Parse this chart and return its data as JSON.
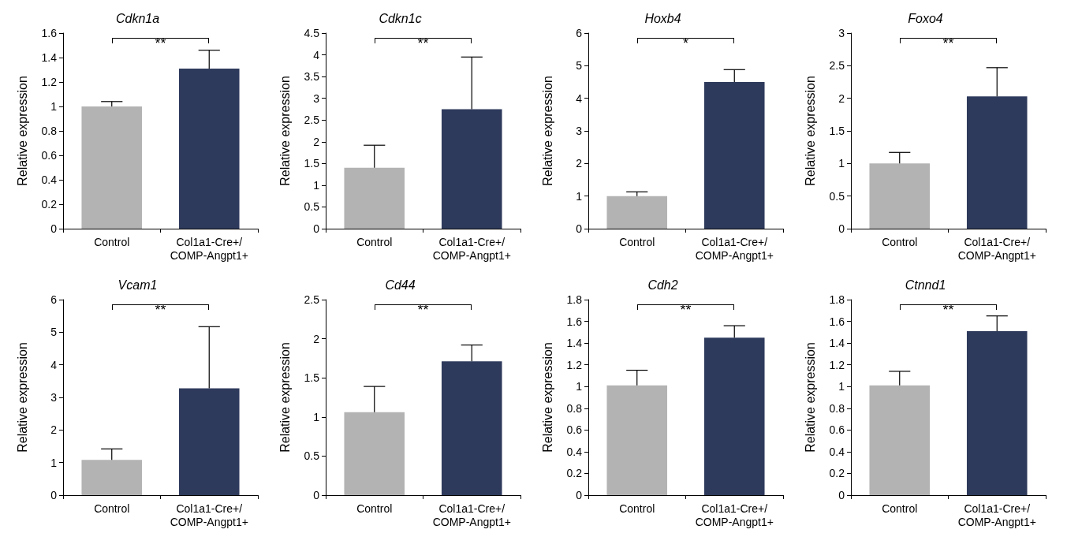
{
  "chart_data": [
    {
      "type": "bar",
      "title": "Cdkn1a",
      "ylabel": "Relative expression",
      "categories": [
        "Control",
        "Col1a1-Cre+/\nCOMP-Angpt1+"
      ],
      "values": [
        1.0,
        1.31
      ],
      "errors": [
        [
          1.0,
          1.04
        ],
        [
          1.31,
          1.46
        ]
      ],
      "colors": [
        "#b3b3b3",
        "#2e3a5c"
      ],
      "ylim": [
        0,
        1.6
      ],
      "yticks": [
        0,
        0.2,
        0.4,
        0.6,
        0.8,
        1,
        1.2,
        1.4,
        1.6
      ],
      "annotations": [
        "**"
      ],
      "grid": false
    },
    {
      "type": "bar",
      "title": "Cdkn1c",
      "ylabel": "Relative expression",
      "categories": [
        "Control",
        "Col1a1-Cre+/\nCOMP-Angpt1+"
      ],
      "values": [
        1.4,
        2.75
      ],
      "errors": [
        [
          1.4,
          1.92
        ],
        [
          2.75,
          3.95
        ]
      ],
      "colors": [
        "#b3b3b3",
        "#2e3a5c"
      ],
      "ylim": [
        0,
        4.5
      ],
      "yticks": [
        0,
        0.5,
        1,
        1.5,
        2,
        2.5,
        3,
        3.5,
        4,
        4.5
      ],
      "annotations": [
        "**"
      ],
      "grid": false
    },
    {
      "type": "bar",
      "title": "Hoxb4",
      "ylabel": "Relative expression",
      "categories": [
        "Control",
        "Col1a1-Cre+/\nCOMP-Angpt1+"
      ],
      "values": [
        1.0,
        4.5
      ],
      "errors": [
        [
          1.0,
          1.13
        ],
        [
          4.5,
          4.88
        ]
      ],
      "colors": [
        "#b3b3b3",
        "#2e3a5c"
      ],
      "ylim": [
        0,
        6
      ],
      "yticks": [
        0,
        1,
        2,
        3,
        4,
        5,
        6
      ],
      "annotations": [
        "*"
      ],
      "grid": false
    },
    {
      "type": "bar",
      "title": "Foxo4",
      "ylabel": "Relative expression",
      "categories": [
        "Control",
        "Col1a1-Cre+/\nCOMP-Angpt1+"
      ],
      "values": [
        1.0,
        2.03
      ],
      "errors": [
        [
          1.0,
          1.17
        ],
        [
          2.03,
          2.47
        ]
      ],
      "colors": [
        "#b3b3b3",
        "#2e3a5c"
      ],
      "ylim": [
        0,
        3
      ],
      "yticks": [
        0,
        0.5,
        1,
        1.5,
        2,
        2.5,
        3
      ],
      "annotations": [
        "**"
      ],
      "grid": false
    },
    {
      "type": "bar",
      "title": "Vcam1",
      "ylabel": "Relative expression",
      "categories": [
        "Control",
        "Col1a1-Cre+/\nCOMP-Angpt1+"
      ],
      "values": [
        1.08,
        3.28
      ],
      "errors": [
        [
          1.08,
          1.42
        ],
        [
          3.28,
          5.17
        ]
      ],
      "colors": [
        "#b3b3b3",
        "#2e3a5c"
      ],
      "ylim": [
        0,
        6
      ],
      "yticks": [
        0,
        1,
        2,
        3,
        4,
        5,
        6
      ],
      "annotations": [
        "**"
      ],
      "grid": false
    },
    {
      "type": "bar",
      "title": "Cd44",
      "ylabel": "Relative expression",
      "categories": [
        "Control",
        "Col1a1-Cre+/\nCOMP-Angpt1+"
      ],
      "values": [
        1.06,
        1.71
      ],
      "errors": [
        [
          1.06,
          1.39
        ],
        [
          1.71,
          1.92
        ]
      ],
      "colors": [
        "#b3b3b3",
        "#2e3a5c"
      ],
      "ylim": [
        0,
        2.5
      ],
      "yticks": [
        0,
        0.5,
        1,
        1.5,
        2,
        2.5
      ],
      "annotations": [
        "**"
      ],
      "grid": false
    },
    {
      "type": "bar",
      "title": "Cdh2",
      "ylabel": "Relative expression",
      "categories": [
        "Control",
        "Col1a1-Cre+/\nCOMP-Angpt1+"
      ],
      "values": [
        1.01,
        1.45
      ],
      "errors": [
        [
          1.01,
          1.15
        ],
        [
          1.45,
          1.56
        ]
      ],
      "colors": [
        "#b3b3b3",
        "#2e3a5c"
      ],
      "ylim": [
        0,
        1.8
      ],
      "yticks": [
        0,
        0.2,
        0.4,
        0.6,
        0.8,
        1,
        1.2,
        1.4,
        1.6,
        1.8
      ],
      "annotations": [
        "**"
      ],
      "grid": false
    },
    {
      "type": "bar",
      "title": "Ctnnd1",
      "ylabel": "Relative expression",
      "categories": [
        "Control",
        "Col1a1-Cre+/\nCOMP-Angpt1+"
      ],
      "values": [
        1.01,
        1.51
      ],
      "errors": [
        [
          1.01,
          1.14
        ],
        [
          1.51,
          1.65
        ]
      ],
      "colors": [
        "#b3b3b3",
        "#2e3a5c"
      ],
      "ylim": [
        0,
        1.8
      ],
      "yticks": [
        0,
        0.2,
        0.4,
        0.6,
        0.8,
        1,
        1.2,
        1.4,
        1.6,
        1.8
      ],
      "annotations": [
        "**"
      ],
      "grid": false
    }
  ]
}
